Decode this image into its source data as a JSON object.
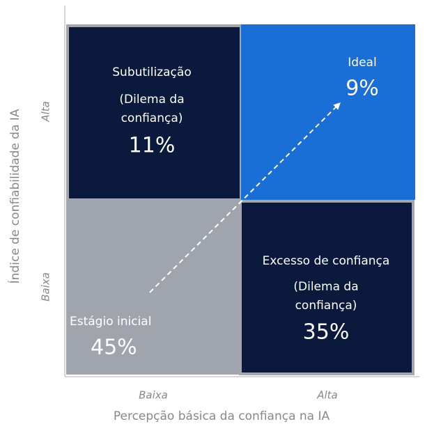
{
  "quadrants": [
    {
      "title": "Subutilização",
      "lines": [
        "(Dilema da",
        "confiança)"
      ],
      "share": "11%"
    },
    {
      "title": "Ideal",
      "share": "9%"
    },
    {
      "title": "Estágio inicial",
      "share": "45%"
    },
    {
      "title": "Excesso de confiança",
      "lines": [
        "(Dilema da",
        "confiança)"
      ],
      "share": "35%"
    }
  ],
  "y_axis": {
    "title": "Índice de confiabilidade da IA",
    "high": "Alta",
    "low": "Baixa"
  },
  "x_axis": {
    "title": "Percepção básica da confiança na IA",
    "low": "Baixa",
    "high": "Alta"
  }
}
